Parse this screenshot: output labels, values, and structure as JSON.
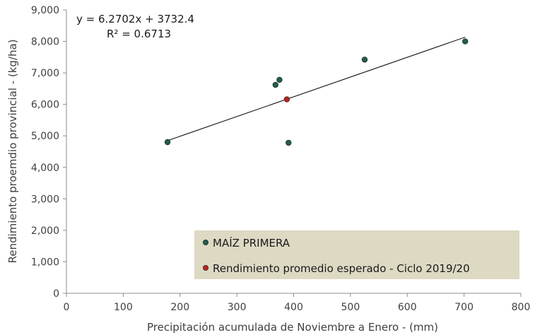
{
  "chart_data": {
    "type": "scatter",
    "xlabel": "Precipitación acumulada de Noviembre a Enero - (mm)",
    "ylabel": "Rendimiento proemdio provincial - (kg/ha)",
    "xlim": [
      0,
      800
    ],
    "ylim": [
      0,
      9000
    ],
    "x_ticks": [
      0,
      100,
      200,
      300,
      400,
      500,
      600,
      700,
      800
    ],
    "y_ticks": [
      0,
      1000,
      2000,
      3000,
      4000,
      5000,
      6000,
      7000,
      8000,
      9000
    ],
    "x_tick_labels": [
      "0",
      "100",
      "200",
      "300",
      "400",
      "500",
      "600",
      "700",
      "800"
    ],
    "y_tick_labels": [
      "0",
      "1,000",
      "2,000",
      "3,000",
      "4,000",
      "5,000",
      "6,000",
      "7,000",
      "8,000",
      "9,000"
    ],
    "grid": false,
    "legend_position": "bottom-right",
    "series": [
      {
        "name": "MAÍZ PRIMERA",
        "color": "#1f5f4f",
        "points": [
          {
            "x": 178,
            "y": 4800
          },
          {
            "x": 368,
            "y": 6620
          },
          {
            "x": 375,
            "y": 6780
          },
          {
            "x": 391,
            "y": 4780
          },
          {
            "x": 525,
            "y": 7420
          },
          {
            "x": 702,
            "y": 8000
          }
        ]
      },
      {
        "name": "Rendimiento promedio esperado - Ciclo 2019/20",
        "color": "#c0201e",
        "points": [
          {
            "x": 388,
            "y": 6160
          }
        ]
      }
    ],
    "trendline": {
      "slope": 6.2702,
      "intercept": 3732.4,
      "x_range": [
        178,
        702
      ],
      "equation_label": "y = 6.2702x + 3732.4",
      "r2_label": "R² = 0.6713"
    }
  }
}
